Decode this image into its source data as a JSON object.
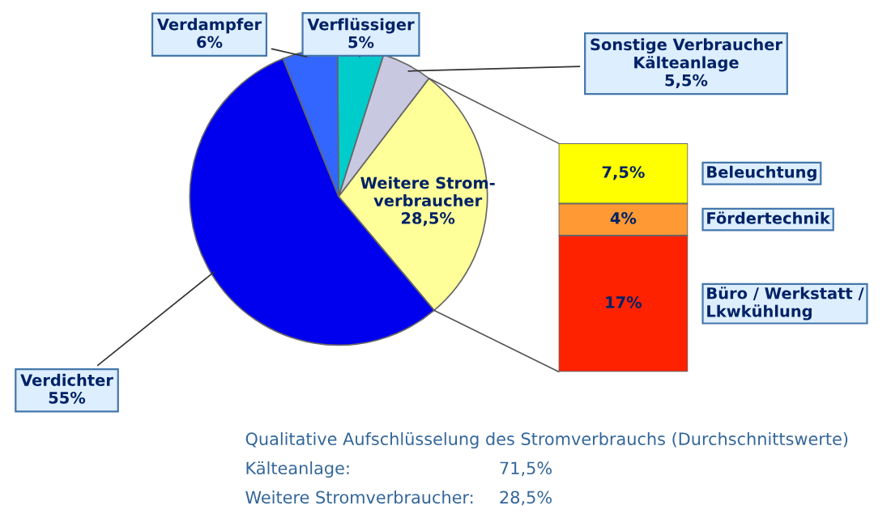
{
  "chart_data": [
    {
      "type": "pie",
      "categories": [
        "Weitere Strom-\nverbraucher",
        "Sonstige Verbraucher\nKälteanlage",
        "Verflüssiger",
        "Verdampfer",
        "Verdichter"
      ],
      "values": [
        28.5,
        5.5,
        5,
        6,
        55
      ],
      "value_labels": [
        "28,5%",
        "5,5%",
        "5%",
        "6%",
        "55%"
      ],
      "colors": [
        "#ffff99",
        "#c8c8e0",
        "#00cccc",
        "#3366ff",
        "#0000ee"
      ],
      "annotations": [
        "Qualitative Aufschlüsselung des Stromverbrauchs (Durchschnittswerte)",
        "Kälteanlage:",
        "71,5%",
        "Weitere Stromverbraucher:",
        "28,5%"
      ]
    },
    {
      "type": "bar",
      "stacked": true,
      "categories": [
        null
      ],
      "series": [
        {
          "name": "Büro / Werkstatt /\nLkwkühlung",
          "color": "#ff2200",
          "values": [
            17
          ],
          "value_labels": [
            "17%"
          ]
        },
        {
          "name": "Fördertechnik",
          "color": "#ff9933",
          "values": [
            4
          ],
          "value_labels": [
            "4%"
          ]
        },
        {
          "name": "Beleuchtung",
          "color": "#ffff00",
          "values": [
            7.5
          ],
          "value_labels": [
            "7,5%"
          ]
        }
      ]
    }
  ]
}
